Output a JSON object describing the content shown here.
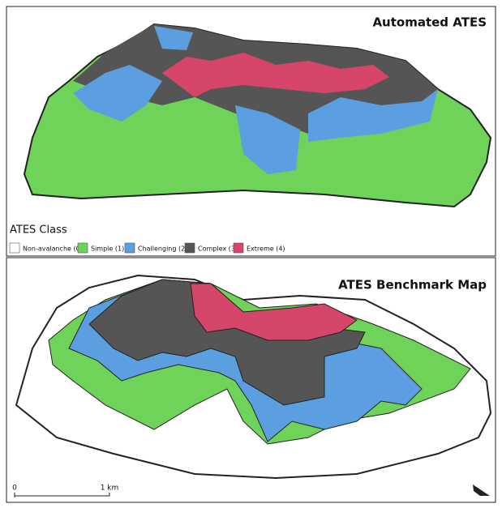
{
  "panels": [
    {
      "title": "Automated ATES"
    },
    {
      "title": "ATES Benchmark Map"
    }
  ],
  "legend": {
    "title": "ATES Class",
    "items": [
      {
        "label": "Non-avalanche (0)",
        "color": "#ffffff"
      },
      {
        "label": "Simple (1)",
        "color": "#6fd35a"
      },
      {
        "label": "Challenging (2)",
        "color": "#5b9fe0"
      },
      {
        "label": "Complex (3)",
        "color": "#555555"
      },
      {
        "label": "Extreme (4)",
        "color": "#d6466a"
      }
    ]
  },
  "scale_bar": {
    "start": "0",
    "end": "1 km"
  }
}
